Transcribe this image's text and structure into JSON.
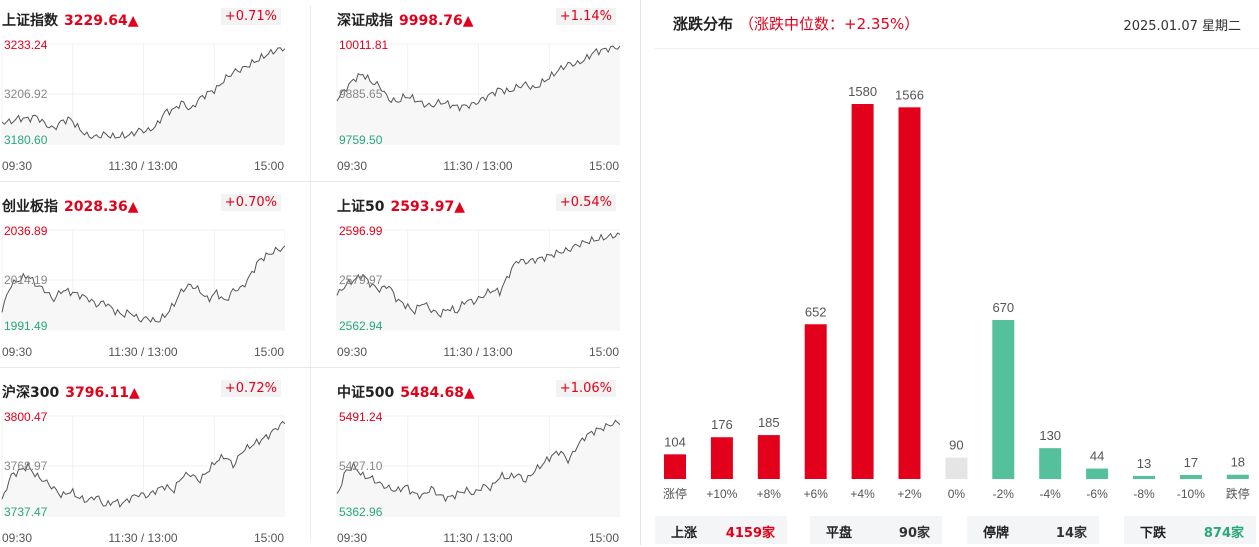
{
  "indices": [
    {
      "name": "上证指数",
      "price": "3229.64▲",
      "change": "+0.71%",
      "high": "3233.24",
      "mid": "3206.92",
      "low": "3180.60",
      "t_start": "09:30",
      "t_mid": "11:30 / 13:00",
      "t_end": "15:00"
    },
    {
      "name": "深证成指",
      "price": "9998.76▲",
      "change": "+1.14%",
      "high": "10011.81",
      "mid": "9885.65",
      "low": "9759.50",
      "t_start": "09:30",
      "t_mid": "11:30 / 13:00",
      "t_end": "15:00"
    },
    {
      "name": "创业板指",
      "price": "2028.36▲",
      "change": "+0.70%",
      "high": "2036.89",
      "mid": "2014.19",
      "low": "1991.49",
      "t_start": "09:30",
      "t_mid": "11:30 / 13:00",
      "t_end": "15:00"
    },
    {
      "name": "上证50",
      "price": "2593.97▲",
      "change": "+0.54%",
      "high": "2596.99",
      "mid": "2579.97",
      "low": "2562.94",
      "t_start": "09:30",
      "t_mid": "11:30 / 13:00",
      "t_end": "15:00"
    },
    {
      "name": "沪深300",
      "price": "3796.11▲",
      "change": "+0.72%",
      "high": "3800.47",
      "mid": "3768.97",
      "low": "3737.47",
      "t_start": "09:30",
      "t_mid": "11:30 / 13:00",
      "t_end": "15:00"
    },
    {
      "name": "中证500",
      "price": "5484.68▲",
      "change": "+1.06%",
      "high": "5491.24",
      "mid": "5427.10",
      "low": "5362.96",
      "t_start": "09:30",
      "t_mid": "11:30 / 13:00",
      "t_end": "15:00"
    }
  ],
  "dist": {
    "title": "涨跌分布",
    "subtitle": "（涨跌中位数：+2.35%）",
    "date": "2025.01.07 星期二"
  },
  "chart_data": {
    "type": "bar",
    "categories": [
      "涨停",
      "+10%",
      "+8%",
      "+6%",
      "+4%",
      "+2%",
      "0%",
      "-2%",
      "-4%",
      "-6%",
      "-8%",
      "-10%",
      "跌停"
    ],
    "values": [
      104,
      176,
      185,
      652,
      1580,
      1566,
      90,
      670,
      130,
      44,
      13,
      17,
      18
    ],
    "colors": [
      "#e3001b",
      "#e3001b",
      "#e3001b",
      "#e3001b",
      "#e3001b",
      "#e3001b",
      "#e5e5e5",
      "#55c19c",
      "#55c19c",
      "#55c19c",
      "#55c19c",
      "#55c19c",
      "#55c19c"
    ]
  },
  "summary": [
    {
      "label": "上涨",
      "value": "4159家",
      "color": "#e3001b"
    },
    {
      "label": "平盘",
      "value": "90家",
      "color": "#333333"
    },
    {
      "label": "停牌",
      "value": "14家",
      "color": "#333333"
    },
    {
      "label": "下跌",
      "value": "874家",
      "color": "#2aa879"
    }
  ],
  "colors": {
    "up": "#e3001b",
    "down": "#2aa879",
    "line": "#555555"
  }
}
